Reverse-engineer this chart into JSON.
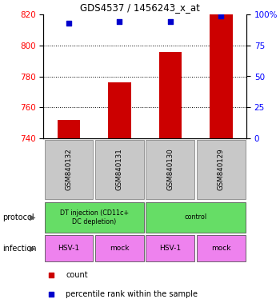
{
  "title": "GDS4537 / 1456243_x_at",
  "samples": [
    "GSM840132",
    "GSM840131",
    "GSM840130",
    "GSM840129"
  ],
  "bar_values": [
    752,
    776,
    796,
    820
  ],
  "bar_bottom": 740,
  "percentile_values": [
    93,
    94,
    94,
    99
  ],
  "bar_color": "#cc0000",
  "dot_color": "#0000cc",
  "ylim_left": [
    740,
    820
  ],
  "ylim_right": [
    0,
    100
  ],
  "yticks_left": [
    740,
    760,
    780,
    800,
    820
  ],
  "yticks_right": [
    0,
    25,
    50,
    75,
    100
  ],
  "ytick_labels_right": [
    "0",
    "25",
    "50",
    "75",
    "100%"
  ],
  "grid_values": [
    760,
    780,
    800
  ],
  "protocol_groups": [
    {
      "label": "DT injection (CD11c+\nDC depletion)",
      "start": 0,
      "end": 2,
      "color": "#66dd66"
    },
    {
      "label": "control",
      "start": 2,
      "end": 4,
      "color": "#66dd66"
    }
  ],
  "infection_groups": [
    {
      "label": "HSV-1",
      "start": 0,
      "end": 1,
      "color": "#ee82ee"
    },
    {
      "label": "mock",
      "start": 1,
      "end": 2,
      "color": "#ee82ee"
    },
    {
      "label": "HSV-1",
      "start": 2,
      "end": 3,
      "color": "#ee82ee"
    },
    {
      "label": "mock",
      "start": 3,
      "end": 4,
      "color": "#ee82ee"
    }
  ],
  "sample_box_color": "#c8c8c8",
  "legend_count_color": "#cc0000",
  "legend_dot_color": "#0000cc",
  "fig_width": 3.5,
  "fig_height": 3.84,
  "dpi": 100
}
